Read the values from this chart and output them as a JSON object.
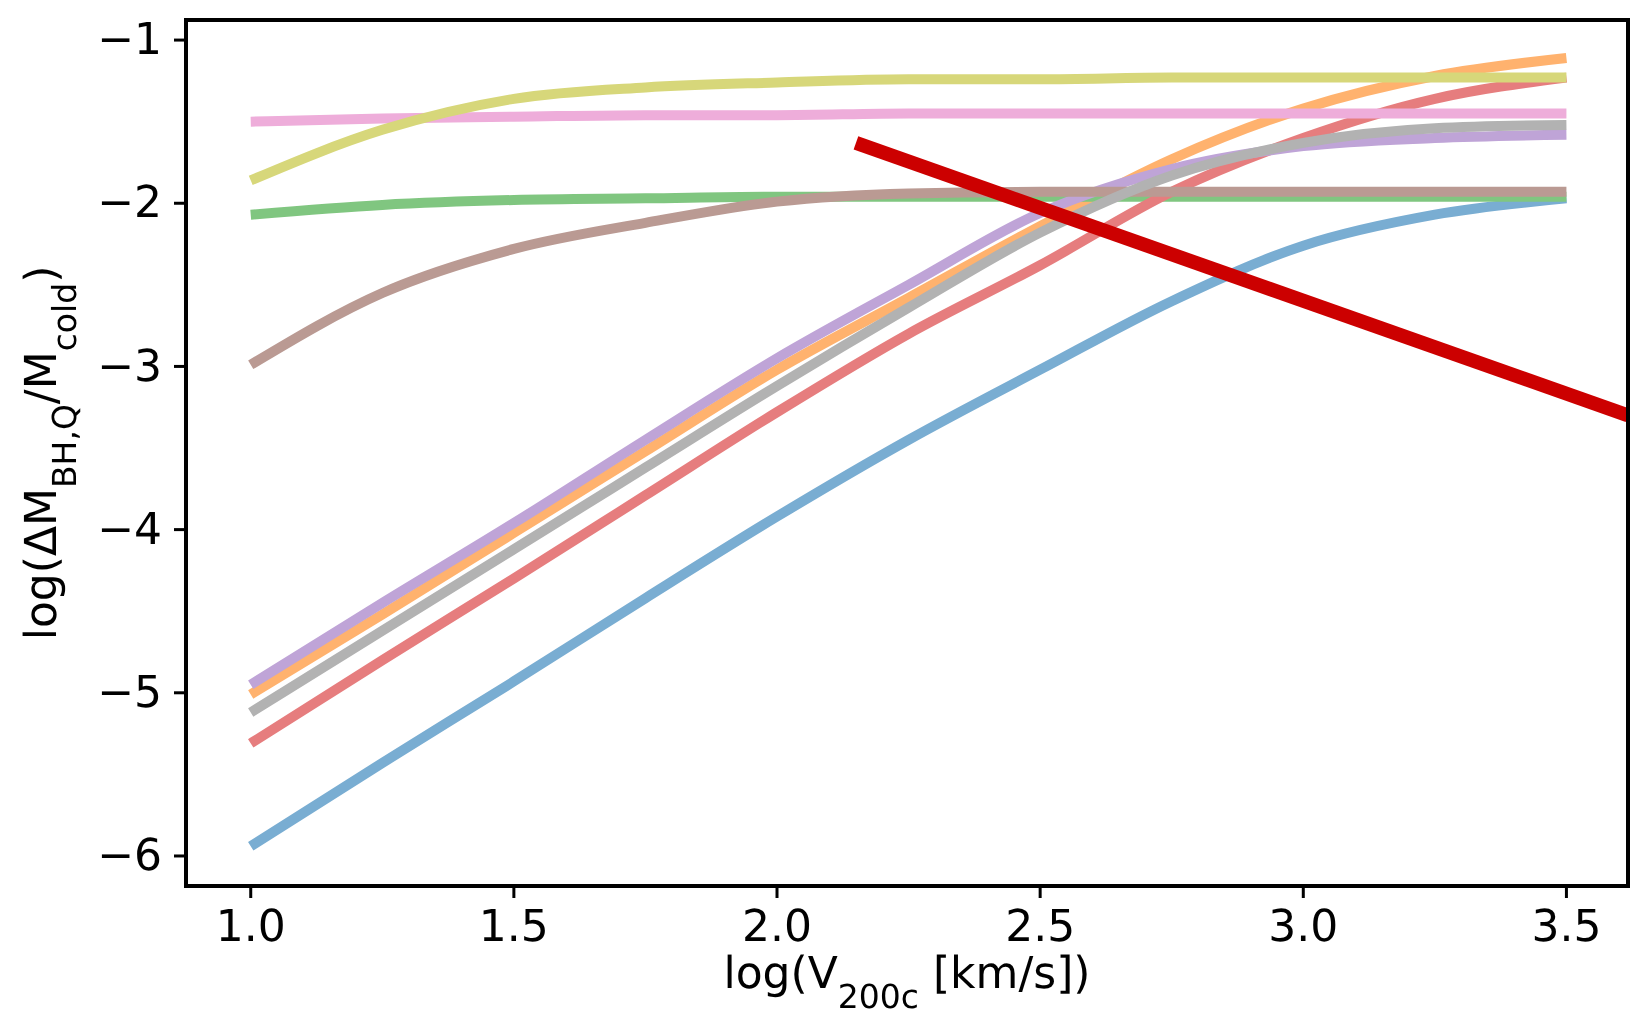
{
  "chart_data": {
    "type": "line",
    "xlabel": "log(V$_{200c}$ [km/s])",
    "ylabel": "log(ΔM$_{BH,Q}$/M$_{cold}$)",
    "x": [
      1.0,
      1.25,
      1.5,
      1.75,
      2.0,
      2.25,
      2.5,
      2.75,
      3.0,
      3.25,
      3.5
    ],
    "series": [
      {
        "color": "#79add2",
        "values": [
          -5.94,
          -5.43,
          -4.93,
          -4.42,
          -3.92,
          -3.45,
          -3.02,
          -2.6,
          -2.26,
          -2.07,
          -1.97
        ]
      },
      {
        "color": "#ffb26e",
        "values": [
          -5.01,
          -4.52,
          -4.02,
          -3.52,
          -3.02,
          -2.58,
          -2.14,
          -1.73,
          -1.42,
          -1.22,
          -1.11
        ]
      },
      {
        "color": "#80c680",
        "values": [
          -2.07,
          -2.01,
          -1.98,
          -1.97,
          -1.96,
          -1.96,
          -1.96,
          -1.96,
          -1.96,
          -1.96,
          -1.96
        ]
      },
      {
        "color": "#e67d7e",
        "values": [
          -5.31,
          -4.8,
          -4.3,
          -3.79,
          -3.28,
          -2.8,
          -2.38,
          -1.93,
          -1.6,
          -1.36,
          -1.23
        ]
      },
      {
        "color": "#bfa4d7",
        "values": [
          -4.95,
          -4.45,
          -3.96,
          -3.45,
          -2.95,
          -2.5,
          -2.06,
          -1.79,
          -1.65,
          -1.6,
          -1.58
        ]
      },
      {
        "color": "#ba9a93",
        "values": [
          -2.99,
          -2.55,
          -2.28,
          -2.12,
          -1.99,
          -1.94,
          -1.93,
          -1.93,
          -1.93,
          -1.93,
          -1.93
        ]
      },
      {
        "color": "#eeadda",
        "values": [
          -1.5,
          -1.48,
          -1.47,
          -1.46,
          -1.46,
          -1.45,
          -1.45,
          -1.45,
          -1.45,
          -1.45,
          -1.45
        ]
      },
      {
        "color": "#b2b2b2",
        "values": [
          -5.12,
          -4.62,
          -4.12,
          -3.62,
          -3.12,
          -2.64,
          -2.18,
          -1.83,
          -1.63,
          -1.54,
          -1.52
        ]
      },
      {
        "color": "#d7d77a",
        "values": [
          -1.86,
          -1.55,
          -1.36,
          -1.29,
          -1.26,
          -1.24,
          -1.24,
          -1.23,
          -1.23,
          -1.23,
          -1.23
        ]
      },
      {
        "color": "#cc0000",
        "x": [
          2.15,
          3.617
        ],
        "values": [
          -1.63,
          -3.3
        ]
      }
    ],
    "xlim": [
      0.877,
      3.617
    ],
    "ylim": [
      -6.184,
      -0.877
    ],
    "xticks": [
      {
        "value": 1.0,
        "label": "1.0"
      },
      {
        "value": 1.5,
        "label": "1.5"
      },
      {
        "value": 2.0,
        "label": "2.0"
      },
      {
        "value": 2.5,
        "label": "2.5"
      },
      {
        "value": 3.0,
        "label": "3.0"
      },
      {
        "value": 3.5,
        "label": "3.5"
      }
    ],
    "yticks": [
      {
        "value": -6,
        "label": "−6"
      },
      {
        "value": -5,
        "label": "−5"
      },
      {
        "value": -4,
        "label": "−4"
      },
      {
        "value": -3,
        "label": "−3"
      },
      {
        "value": -2,
        "label": "−2"
      },
      {
        "value": -1,
        "label": "−1"
      }
    ],
    "grid": false,
    "marker": "none",
    "line_style": "solid"
  }
}
